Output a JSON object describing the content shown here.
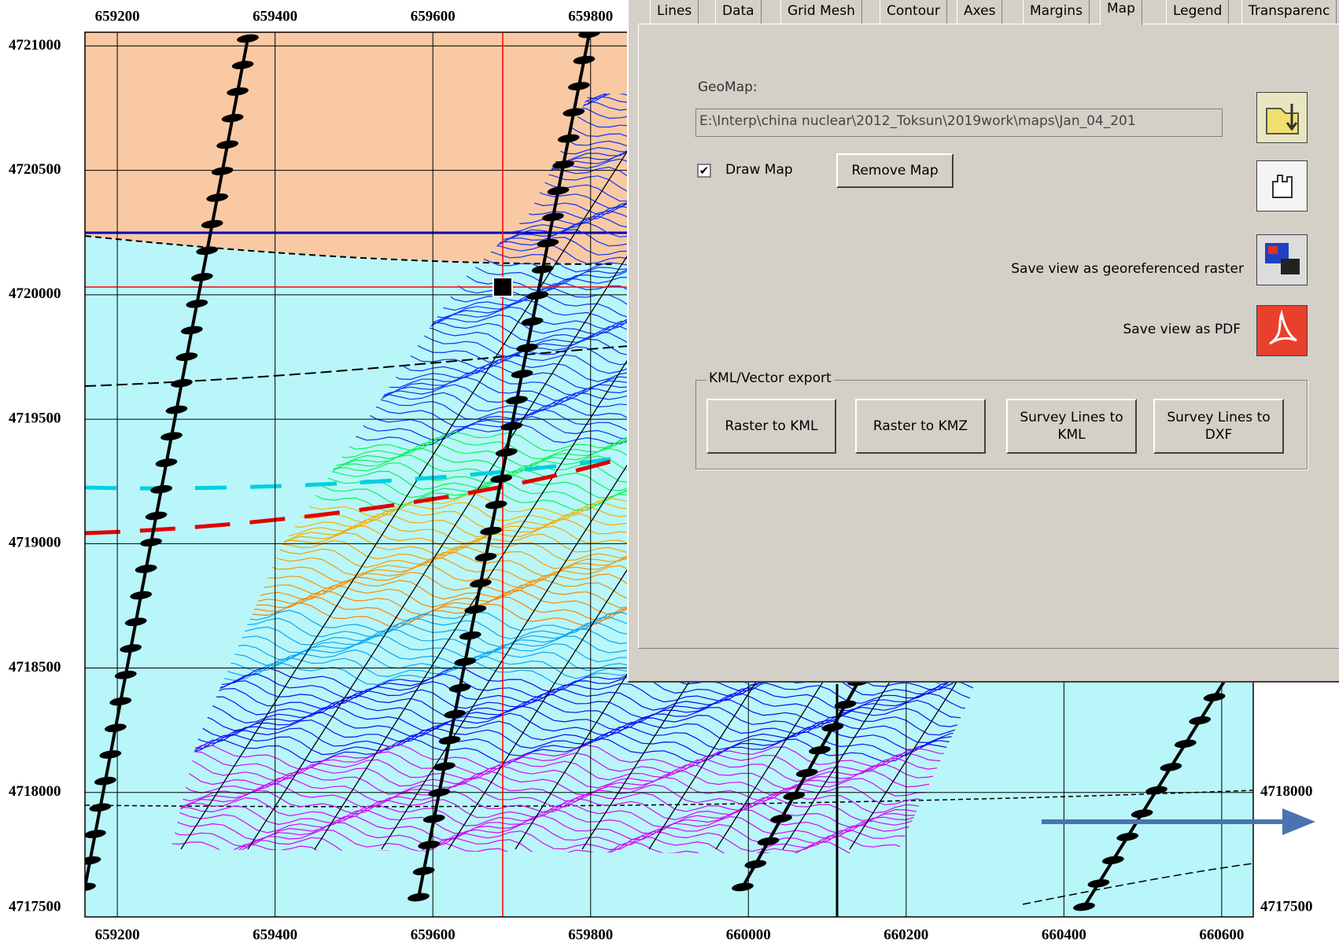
{
  "map": {
    "xlim": [
      659159,
      660640
    ],
    "ylim": [
      4717500,
      4721055
    ],
    "top_ticks": [
      659200,
      659400,
      659600,
      659800
    ],
    "bottom_ticks": [
      659200,
      659400,
      659600,
      659800,
      660000,
      660200,
      660400,
      660600
    ],
    "left_ticks": [
      4721000,
      4720500,
      4720000,
      4719500,
      4719000,
      4718500,
      4718000,
      4717500
    ],
    "right_ticks": [
      4718000,
      4717500
    ]
  },
  "dialog": {
    "tabs": [
      "Lines",
      "Data",
      "Grid Mesh",
      "Contour",
      "Axes",
      "Margins",
      "Map",
      "Legend",
      "Transparenc"
    ],
    "geomap_label": "GeoMap:",
    "geomap_path": "E:\\Interp\\china nuclear\\2012_Toksun\\2019work\\maps\\Jan_04_201",
    "draw_map": "Draw Map",
    "remove_map": "Remove Map",
    "save_raster": "Save view as georeferenced raster",
    "save_pdf": "Save view as PDF",
    "kml_group": "KML/Vector export",
    "buttons": [
      "Raster to KML",
      "Raster to KMZ",
      "Survey Lines to KML",
      "Survey Lines to DXF"
    ]
  }
}
